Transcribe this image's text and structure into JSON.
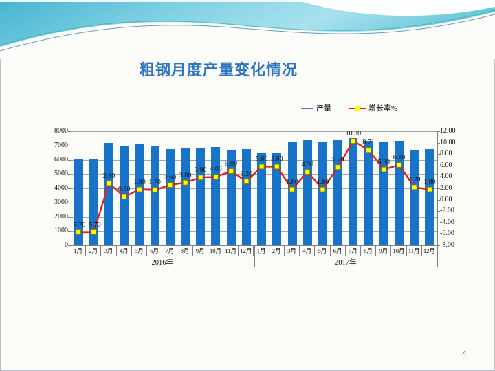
{
  "title": "粗钢月度产量变化情况",
  "page_number": "4",
  "colors": {
    "title": "#2f74c0",
    "bar": "#1874c8",
    "growth_line": "#e01f1f",
    "marker_fill": "#ffff00",
    "marker_border": "#7f7f00",
    "page_number": "#44808f"
  },
  "legend": {
    "items": [
      {
        "label": "产量",
        "type": "line"
      },
      {
        "label": "增长率%",
        "type": "line-marker"
      }
    ]
  },
  "chart_data": {
    "type": "bar+line combo",
    "title": "粗钢月度产量变化情况",
    "categories": [
      "1月",
      "2月",
      "3月",
      "4月",
      "5月",
      "6月",
      "7月",
      "8月",
      "9月",
      "10月",
      "11月",
      "12月",
      "1月",
      "2月",
      "3月",
      "4月",
      "5月",
      "6月",
      "7月",
      "8月",
      "9月",
      "10月",
      "11月",
      "12月"
    ],
    "year_groups": [
      {
        "label": "2016年",
        "span": 12
      },
      {
        "label": "2017年",
        "span": 12
      }
    ],
    "series": [
      {
        "name": "产量",
        "type": "bar",
        "axis": "left",
        "values": [
          6050,
          6050,
          7180,
          6990,
          7080,
          6990,
          6750,
          6840,
          6840,
          6890,
          6700,
          6750,
          6500,
          6500,
          7230,
          7370,
          7280,
          7370,
          7520,
          7330,
          7280,
          7330,
          6700,
          6750
        ]
      },
      {
        "name": "增长率%",
        "type": "line",
        "axis": "right",
        "values": [
          -5.7,
          -5.7,
          2.9,
          0.5,
          1.8,
          1.7,
          2.6,
          3.0,
          3.9,
          4.0,
          5.0,
          3.2,
          5.8,
          5.8,
          1.8,
          4.9,
          1.8,
          5.7,
          10.3,
          8.71,
          5.3,
          6.1,
          2.2,
          1.8
        ],
        "point_labels": [
          "-5.70",
          "-5.70",
          "2.90",
          "0.50",
          "1.80",
          "1.70",
          "2.60",
          "3.00",
          "3.90",
          "4.00",
          "5.00",
          "3.20",
          "5.80",
          "5.80",
          "1.80",
          "4.90",
          "1.80",
          "5.70",
          "10.30",
          "8.71",
          "5.30",
          "6.10",
          "2.20",
          "1.80"
        ]
      }
    ],
    "left_axis": {
      "min": 0,
      "max": 8000,
      "step": 1000,
      "ticks": [
        "8000",
        "7000",
        "6000",
        "5000",
        "4000",
        "3000",
        "2000",
        "1000",
        "0"
      ]
    },
    "right_axis": {
      "min": -8,
      "max": 12,
      "step": 2,
      "ticks": [
        "12.00",
        "10.00",
        "8.00",
        "6.00",
        "4.00",
        "2.00",
        "0.00",
        "-2.00",
        "-4.00",
        "-6.00",
        "-8.00"
      ]
    },
    "grid": true,
    "legend_position": "top-right"
  }
}
